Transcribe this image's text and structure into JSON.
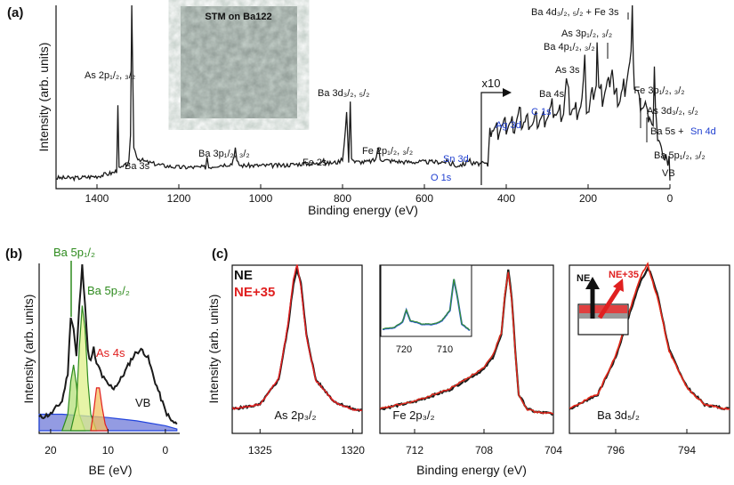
{
  "figure": {
    "panel_a": "(a)",
    "panel_b": "(b)",
    "panel_c": "(c)",
    "stm_label": "STM on Ba122",
    "x10_label": "x10",
    "colors": {
      "black": "#1a1a1a",
      "red": "#e02020",
      "blue": "#2244dd",
      "green": "#3a9a1a",
      "orange": "#f08a00"
    }
  },
  "chart_data": [
    {
      "id": "a",
      "type": "line",
      "title": "",
      "xlabel": "Binding energy (eV)",
      "ylabel": "Intensity (arb. units)",
      "xlim": [
        1500,
        0
      ],
      "x_ticks": [
        "1400",
        "1200",
        "1000",
        "800",
        "600",
        "400",
        "200",
        "0"
      ],
      "annotations": [
        {
          "text": "As 2p1/2, 3/2",
          "display": "As 2p₁/₂, ₃/₂",
          "energy": 1330
        },
        {
          "text": "Ba 3s",
          "display": "Ba 3s",
          "energy": 1293
        },
        {
          "text": "Ba 3p1/2, 3/2",
          "display": "Ba 3p₁/₂, ₃/₂",
          "energy": 1110
        },
        {
          "text": "Fe 2s",
          "display": "Fe 2s",
          "energy": 846
        },
        {
          "text": "Ba 3d3/2, 5/2",
          "display": "Ba 3d₃/₂, ₅/₂",
          "energy": 785
        },
        {
          "text": "Fe 2p1/2, 3/2",
          "display": "Fe 2p₁/₂, ₃/₂",
          "energy": 715
        },
        {
          "text": "O 1s",
          "display": "O 1s",
          "energy": 531,
          "color": "blue"
        },
        {
          "text": "Sn 3d",
          "display": "Sn 3d",
          "energy": 488,
          "color": "blue"
        },
        {
          "text": "Ag 3d",
          "display": "Ag 3d",
          "energy": 368,
          "color": "blue"
        },
        {
          "text": "C 1s",
          "display": "C 1s",
          "energy": 285,
          "color": "blue"
        },
        {
          "text": "Ba 4s",
          "display": "Ba 4s",
          "energy": 253
        },
        {
          "text": "As 3s",
          "display": "As 3s",
          "energy": 204
        },
        {
          "text": "Ba 4p1/2, 3/2",
          "display": "Ba 4p₁/₂, ₃/₂",
          "energy": 178
        },
        {
          "text": "As 3p1/2, 3/2",
          "display": "As 3p₁/₂, ₃/₂",
          "energy": 141
        },
        {
          "text": "Ba 4d3/2, 5/2 + Fe 3s",
          "display": "Ba 4d₃/₂, ₅/₂ + Fe 3s",
          "energy": 92
        },
        {
          "text": "Fe 3p1/2, 3/2",
          "display": "Fe 3p₁/₂, ₃/₂",
          "energy": 55
        },
        {
          "text": "As 3d3/2, 5/2",
          "display": "As 3d₃/₂, ₅/₂",
          "energy": 41
        },
        {
          "text": "Ba 5s + ",
          "display": "Ba 5s + ",
          "energy": 30
        },
        {
          "text": "Sn 4d",
          "display": "Sn 4d",
          "energy": 24,
          "color": "blue"
        },
        {
          "text": "Ba 5p1/2, 3/2",
          "display": "Ba 5p₁/₂, ₃/₂",
          "energy": 15
        },
        {
          "text": "VB",
          "display": "VB",
          "energy": 3
        }
      ],
      "series": [
        {
          "name": "survey",
          "x": [
            1500,
            1450,
            1400,
            1380,
            1360,
            1352,
            1349,
            1346,
            1330,
            1322,
            1318,
            1315,
            1310,
            1300,
            1280,
            1240,
            1200,
            1150,
            1135,
            1131,
            1127,
            1110,
            1070,
            1065,
            1062,
            1058,
            1050,
            1000,
            950,
            900,
            860,
            846,
            842,
            810,
            800,
            796,
            790,
            785,
            781,
            778,
            770,
            740,
            720,
            712,
            708,
            700,
            650,
            600,
            560,
            540,
            535,
            531,
            527,
            520,
            500,
            489,
            486,
            470,
            450,
            445,
            440,
            420,
            400,
            380,
            368,
            360,
            330,
            300,
            285,
            275,
            260,
            253,
            245,
            230,
            215,
            208,
            204,
            198,
            190,
            180,
            178,
            174,
            165,
            150,
            141,
            136,
            125,
            110,
            95,
            92,
            87,
            75,
            60,
            55,
            50,
            41,
            38,
            30,
            24,
            18,
            15,
            10,
            5,
            2,
            0
          ],
          "y": [
            3,
            3,
            4,
            5,
            6,
            7,
            45,
            8,
            10,
            12,
            26,
            100,
            20,
            14,
            12,
            10,
            9,
            9,
            9,
            15,
            9,
            10,
            11,
            16,
            20,
            12,
            10,
            10,
            10,
            11,
            11,
            14,
            11,
            12,
            14,
            22,
            40,
            12,
            45,
            15,
            12,
            12,
            13,
            20,
            14,
            13,
            12,
            12,
            12,
            12,
            10,
            12,
            10,
            10,
            11,
            14,
            11,
            11,
            11,
            10,
            32,
            30,
            33,
            33,
            38,
            35,
            34,
            38,
            42,
            38,
            40,
            58,
            42,
            40,
            45,
            66,
            45,
            42,
            50,
            56,
            78,
            52,
            48,
            56,
            66,
            48,
            46,
            55,
            70,
            95,
            55,
            46,
            44,
            36,
            40,
            30,
            60,
            25,
            22,
            12,
            18,
            16,
            8,
            10,
            7
          ]
        }
      ]
    },
    {
      "id": "b",
      "type": "line",
      "xlabel": "BE (eV)",
      "ylabel": "Intensity (arb. units)",
      "xlim": [
        22,
        -2.5
      ],
      "x_ticks": [
        "20",
        "10",
        "0"
      ],
      "annotations": [
        {
          "text": "Ba 5p1/2",
          "display": "Ba 5p₁/₂",
          "color": "green"
        },
        {
          "text": "Ba 5p3/2",
          "display": "Ba 5p₃/₂",
          "color": "green"
        },
        {
          "text": "As 4s",
          "display": "As 4s",
          "color": "red"
        },
        {
          "text": "VB",
          "display": "VB"
        }
      ],
      "series": [
        {
          "name": "data",
          "x": [
            22,
            20,
            18,
            17,
            16.5,
            16,
            15.5,
            15,
            14.5,
            14,
            13.5,
            13,
            12.5,
            12,
            11.5,
            11,
            10,
            9,
            8,
            7,
            6,
            5,
            4,
            3,
            2,
            1,
            0,
            -1,
            -2
          ],
          "y": [
            8,
            10,
            18,
            35,
            70,
            62,
            45,
            75,
            100,
            78,
            48,
            42,
            50,
            40,
            38,
            33,
            28,
            26,
            30,
            36,
            43,
            48,
            49,
            44,
            32,
            22,
            12,
            6,
            4
          ]
        },
        {
          "name": "blue background",
          "x": [
            22,
            18,
            14,
            10,
            5,
            0,
            -2
          ],
          "y": [
            10,
            10,
            9,
            8,
            6,
            3,
            1
          ]
        },
        {
          "name": "Ba 5p1/2",
          "x": [
            18,
            17,
            16.5,
            16,
            15.5,
            15,
            14
          ],
          "y": [
            0,
            10,
            30,
            40,
            28,
            10,
            0
          ]
        },
        {
          "name": "Ba 5p3/2",
          "x": [
            16.5,
            15.5,
            15,
            14.5,
            14,
            13.5,
            13,
            12
          ],
          "y": [
            0,
            15,
            50,
            76,
            62,
            30,
            10,
            0
          ]
        },
        {
          "name": "As 4s",
          "x": [
            13,
            12.5,
            12,
            11.5,
            11,
            10.5,
            10
          ],
          "y": [
            0,
            12,
            26,
            26,
            14,
            4,
            0
          ]
        }
      ]
    },
    {
      "id": "c",
      "type": "line",
      "xlabel": "Binding energy (eV)",
      "ylabel": "Intensity (arb. units)",
      "legend": [
        {
          "name": "NE",
          "color": "black"
        },
        {
          "name": "NE+35",
          "color": "red"
        }
      ],
      "subplots": [
        {
          "label": "As 2p3/2",
          "display": "As 2p₃/₂",
          "xlim": [
            1326.5,
            1319.5
          ],
          "x_ticks": [
            "1325",
            "1320"
          ],
          "series": [
            {
              "name": "NE",
              "x": [
                1326.5,
                1325,
                1324,
                1323.5,
                1323.2,
                1323,
                1322.8,
                1322.5,
                1322,
                1321,
                1320,
                1319.5
              ],
              "y": [
                5,
                8,
                25,
                60,
                90,
                100,
                90,
                55,
                25,
                10,
                5,
                4
              ]
            }
          ]
        },
        {
          "label": "Fe 2p3/2",
          "display": "Fe 2p₃/₂",
          "xlim": [
            714,
            704
          ],
          "x_ticks": [
            "712",
            "708",
            "704"
          ],
          "series": [
            {
              "name": "NE",
              "x": [
                714,
                712,
                710,
                708,
                707.5,
                707,
                706.8,
                706.6,
                706.4,
                706.2,
                706,
                705.5,
                705,
                704
              ],
              "y": [
                5,
                10,
                18,
                32,
                40,
                55,
                80,
                100,
                80,
                45,
                15,
                5,
                3,
                2
              ]
            }
          ]
        },
        {
          "label": "Ba 3d5/2",
          "display": "Ba 3d₅/₂",
          "xlim": [
            797.3,
            792.8
          ],
          "x_ticks": [
            "796",
            "794"
          ],
          "series": [
            {
              "name": "NE",
              "x": [
                797.3,
                796.5,
                796,
                795.6,
                795.3,
                795.1,
                795,
                794.8,
                794.5,
                794,
                793.5,
                792.8
              ],
              "y": [
                5,
                15,
                40,
                70,
                92,
                100,
                96,
                80,
                45,
                20,
                8,
                5
              ]
            }
          ]
        }
      ],
      "inset_fe": {
        "x_ticks": [
          "720",
          "710"
        ],
        "series": [
          {
            "name": "wide Fe 2p",
            "x": [
              725,
              722,
              720,
              719,
              718,
              715,
              712,
              710,
              708,
              707,
              706,
              705,
              703
            ],
            "y": [
              8,
              10,
              18,
              35,
              20,
              15,
              15,
              20,
              35,
              80,
              50,
              15,
              6
            ]
          }
        ]
      },
      "inset_schematic": {
        "labels": [
          "NE",
          "NE+35"
        ]
      }
    }
  ]
}
